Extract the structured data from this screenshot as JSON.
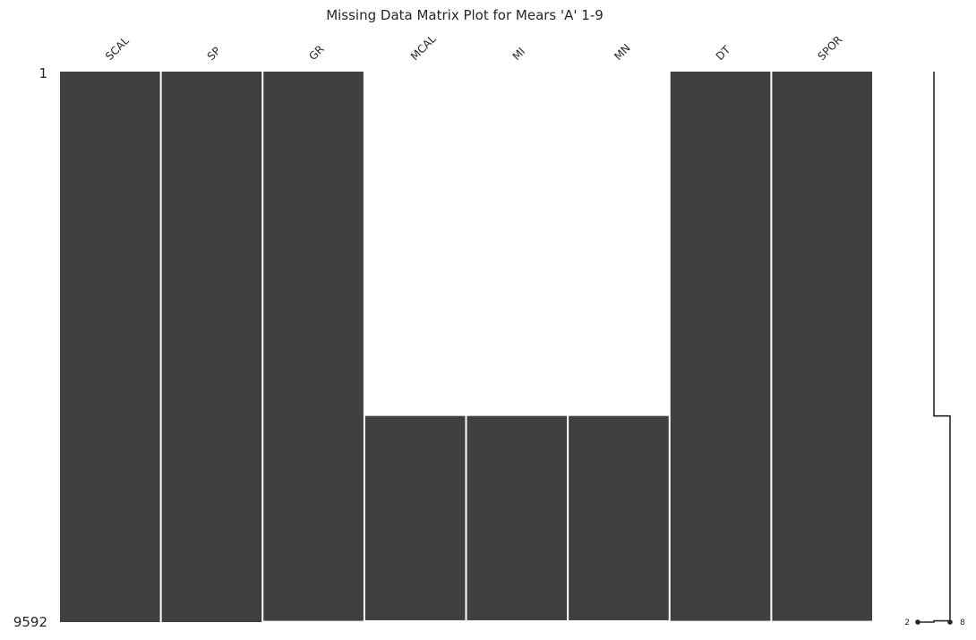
{
  "chart_data": {
    "type": "heatmap",
    "title": "Missing Data Matrix Plot for Mears 'A' 1-9",
    "columns": [
      "SCAL",
      "SP",
      "GR",
      "MCAL",
      "MI",
      "MN",
      "DT",
      "SPOR"
    ],
    "row_range": [
      1,
      9592
    ],
    "row_labels": {
      "top": "1",
      "bottom": "9592"
    },
    "present_color": "#404040",
    "missing_color": "#ffffff",
    "present_ranges": [
      {
        "column": "SCAL",
        "from_row": 1,
        "to_row": 9592
      },
      {
        "column": "SP",
        "from_row": 1,
        "to_row": 9592
      },
      {
        "column": "GR",
        "from_row": 1,
        "to_row": 9570
      },
      {
        "column": "MCAL",
        "from_row": 6000,
        "to_row": 9560
      },
      {
        "column": "MI",
        "from_row": 6000,
        "to_row": 9560
      },
      {
        "column": "MN",
        "from_row": 6000,
        "to_row": 9560
      },
      {
        "column": "DT",
        "from_row": 1,
        "to_row": 9570
      },
      {
        "column": "SPOR",
        "from_row": 1,
        "to_row": 9570
      }
    ],
    "sparkline": {
      "min_label": "2",
      "max_label": "8",
      "points": [
        {
          "row": 1,
          "count": 5
        },
        {
          "row": 5999,
          "count": 5
        },
        {
          "row": 6000,
          "count": 8
        },
        {
          "row": 9560,
          "count": 8
        },
        {
          "row": 9570,
          "count": 5
        },
        {
          "row": 9592,
          "count": 2
        }
      ],
      "min_count": 2,
      "max_count": 8
    }
  }
}
